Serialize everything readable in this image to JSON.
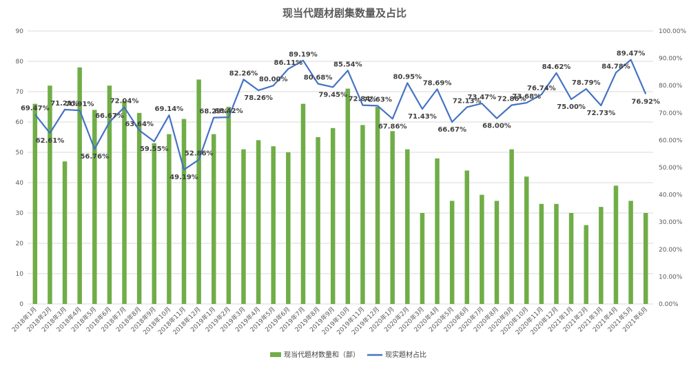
{
  "chart_data": {
    "type": "bar+line",
    "title": "现当代题材剧集数量及占比",
    "categories": [
      "2018年1月",
      "2018年2月",
      "2018年3月",
      "2018年4月",
      "2018年5月",
      "2018年6月",
      "2018年7月",
      "2018年8月",
      "2018年9月",
      "2018年10月",
      "2018年11月",
      "2018年12月",
      "2019年1月",
      "2019年2月",
      "2019年3月",
      "2019年4月",
      "2019年5月",
      "2019年6月",
      "2019年7月",
      "2019年8月",
      "2019年9月",
      "2019年10月",
      "2019年11月",
      "2019年12月",
      "2020年1月",
      "2020年2月",
      "2020年3月",
      "2020年4月",
      "2020年5月",
      "2020年6月",
      "2020年7月",
      "2020年8月",
      "2020年9月",
      "2020年10月",
      "2020年11月",
      "2020年12月",
      "2021年1月",
      "2021年2月",
      "2021年3月",
      "2021年4月",
      "2021年5月",
      "2021年6月"
    ],
    "y_left": {
      "ticks": [
        "0",
        "10",
        "20",
        "30",
        "40",
        "50",
        "60",
        "70",
        "80",
        "90"
      ],
      "ylim": [
        0,
        90
      ]
    },
    "y_right": {
      "ticks": [
        "0.00%",
        "10.00%",
        "20.00%",
        "30.00%",
        "40.00%",
        "50.00%",
        "60.00%",
        "70.00%",
        "80.00%",
        "90.00%",
        "100.00%"
      ],
      "ylim": [
        0,
        100
      ]
    },
    "grid": true,
    "legend_position": "bottom",
    "series": [
      {
        "name": "现当代题材数量和（部）",
        "type": "bar",
        "axis": "left",
        "color": "#70AD47",
        "values": [
          66,
          72,
          47,
          78,
          64,
          72,
          67,
          63,
          53,
          56,
          61,
          74,
          56,
          65,
          51,
          54,
          52,
          50,
          66,
          55,
          58,
          71,
          59,
          65,
          57,
          51,
          30,
          48,
          34,
          44,
          36,
          34,
          51,
          42,
          33,
          33,
          30,
          26,
          32,
          39,
          34,
          30
        ]
      },
      {
        "name": "现实题材占比",
        "type": "line",
        "axis": "right",
        "color": "#4472C4",
        "values": [
          69.47,
          62.61,
          71.21,
          70.91,
          56.76,
          66.67,
          72.04,
          63.64,
          59.55,
          69.14,
          49.19,
          52.86,
          68.29,
          68.42,
          82.26,
          78.26,
          80.0,
          86.11,
          89.19,
          80.68,
          79.45,
          85.54,
          72.84,
          72.63,
          67.86,
          80.95,
          71.43,
          78.69,
          66.67,
          72.13,
          73.47,
          68.0,
          72.86,
          73.68,
          76.74,
          84.62,
          75.0,
          78.79,
          72.73,
          84.78,
          89.47,
          76.92
        ],
        "labels": [
          "69.47%",
          "62.61%",
          "71.21%",
          "70.91%",
          "56.76%",
          "66.67%",
          "72.04%",
          "63.64%",
          "59.55%",
          "69.14%",
          "49.19%",
          "52.86%",
          "68.29%",
          "68.42%",
          "82.26%",
          "78.26%",
          "80.00%",
          "86.11%",
          "89.19%",
          "80.68%",
          "79.45%",
          "85.54%",
          "72.84%",
          "72.63%",
          "67.86%",
          "80.95%",
          "71.43%",
          "78.69%",
          "66.67%",
          "72.13%",
          "73.47%",
          "68.00%",
          "72.86%",
          "73.68%",
          "76.74%",
          "84.62%",
          "75.00%",
          "78.79%",
          "72.73%",
          "84.78%",
          "89.47%",
          "76.92%"
        ]
      }
    ]
  }
}
